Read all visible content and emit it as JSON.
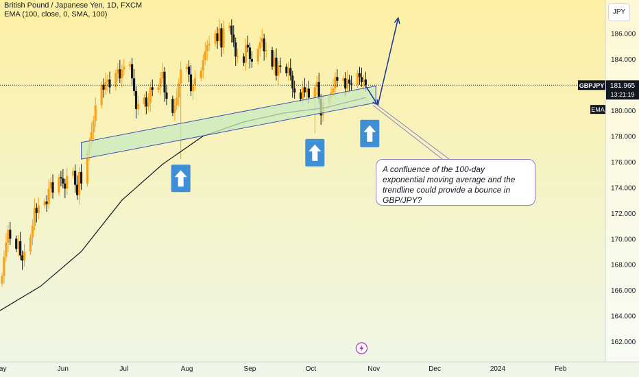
{
  "header": {
    "title": "British Pound / Japanese Yen, 1D, FXCM",
    "indicator": "EMA (100, close, 0, SMA, 100)",
    "currency_button": "JPY"
  },
  "price_tag": {
    "symbol": "GBPJPY",
    "price": "181.965",
    "countdown": "13:21:19",
    "ema_tag": "EMA"
  },
  "annotation": "A confluence of the 100-day exponential moving average and the trendline could provide a bounce in GBP/JPY?",
  "colors": {
    "bg_top": "#fdf0a3",
    "bg_bottom": "#edf5e8",
    "up": "#f7a21b",
    "down": "#131722",
    "ema": "#131722",
    "channel_fill": "#c8ebc0",
    "channel_stroke": "#3f51b5",
    "arrow_box": "#3f8fd6",
    "forecast_arrow": "#1e3a9a",
    "annotation_border": "#8e7cc3"
  },
  "icons": [
    "up-arrow-icon",
    "lightning-icon"
  ],
  "chart_data": {
    "type": "candlestick",
    "symbol": "GBPJPY",
    "timeframe": "1D",
    "y_ticks": [
      162,
      164,
      166,
      168,
      170,
      172,
      174,
      176,
      178,
      180,
      182,
      184,
      186
    ],
    "y_tick_labels": [
      "162.000",
      "164.000",
      "166.000",
      "168.000",
      "170.000",
      "172.000",
      "174.000",
      "176.000",
      "178.000",
      "180.000",
      "182.000",
      "184.000",
      "186.000"
    ],
    "ylim": [
      160.4,
      188.6
    ],
    "x_ticks": [
      "May",
      "Jun",
      "Jul",
      "Aug",
      "Sep",
      "Oct",
      "Nov",
      "Dec",
      "2024",
      "Feb"
    ],
    "x_tick_days": [
      0,
      31,
      61,
      92,
      123,
      153,
      184,
      214,
      245,
      276
    ],
    "xlim": [
      0,
      298
    ],
    "last_price": 181.965,
    "close_approx": [
      [
        1,
        167.1
      ],
      [
        2,
        168.6
      ],
      [
        3,
        169.7
      ],
      [
        4,
        170.7
      ],
      [
        5,
        170.0
      ],
      [
        8,
        169.2
      ],
      [
        9,
        169.8
      ],
      [
        10,
        168.7
      ],
      [
        11,
        168.3
      ],
      [
        12,
        169.0
      ],
      [
        15,
        170.1
      ],
      [
        16,
        171.0
      ],
      [
        17,
        172.4
      ],
      [
        18,
        172.0
      ],
      [
        19,
        172.6
      ],
      [
        22,
        172.9
      ],
      [
        23,
        172.7
      ],
      [
        24,
        173.9
      ],
      [
        25,
        174.4
      ],
      [
        26,
        173.6
      ],
      [
        29,
        174.8
      ],
      [
        30,
        174.7
      ],
      [
        31,
        174.3
      ],
      [
        32,
        173.9
      ],
      [
        33,
        174.9
      ],
      [
        36,
        175.3
      ],
      [
        37,
        174.2
      ],
      [
        38,
        173.4
      ],
      [
        39,
        175.2
      ],
      [
        40,
        174.3
      ],
      [
        43,
        176.7
      ],
      [
        44,
        177.4
      ],
      [
        45,
        178.3
      ],
      [
        46,
        179.2
      ],
      [
        47,
        180.4
      ],
      [
        50,
        182.0
      ],
      [
        51,
        181.6
      ],
      [
        52,
        182.2
      ],
      [
        53,
        182.4
      ],
      [
        54,
        181.8
      ],
      [
        57,
        182.9
      ],
      [
        58,
        183.2
      ],
      [
        59,
        182.5
      ],
      [
        60,
        183.2
      ],
      [
        61,
        183.4
      ],
      [
        64,
        183.6
      ],
      [
        65,
        182.5
      ],
      [
        66,
        181.5
      ],
      [
        67,
        180.1
      ],
      [
        68,
        180.5
      ],
      [
        71,
        181.0
      ],
      [
        72,
        180.3
      ],
      [
        73,
        180.6
      ],
      [
        74,
        181.8
      ],
      [
        75,
        181.6
      ],
      [
        78,
        181.8
      ],
      [
        79,
        182.5
      ],
      [
        80,
        183.0
      ],
      [
        81,
        181.4
      ],
      [
        82,
        180.9
      ],
      [
        85,
        179.8
      ],
      [
        86,
        180.4
      ],
      [
        87,
        181.0
      ],
      [
        88,
        182.1
      ],
      [
        89,
        183.2
      ],
      [
        92,
        183.4
      ],
      [
        93,
        182.8
      ],
      [
        94,
        181.5
      ],
      [
        95,
        182.0
      ],
      [
        96,
        182.5
      ],
      [
        99,
        183.1
      ],
      [
        100,
        183.9
      ],
      [
        101,
        184.6
      ],
      [
        102,
        185.1
      ],
      [
        103,
        185.2
      ],
      [
        106,
        186.0
      ],
      [
        107,
        185.4
      ],
      [
        108,
        186.4
      ],
      [
        109,
        184.9
      ],
      [
        110,
        186.4
      ],
      [
        113,
        186.6
      ],
      [
        114,
        185.9
      ],
      [
        115,
        185.3
      ],
      [
        116,
        184.2
      ],
      [
        117,
        184.2
      ],
      [
        120,
        183.7
      ],
      [
        121,
        185.1
      ],
      [
        122,
        184.9
      ],
      [
        123,
        184.0
      ],
      [
        124,
        183.8
      ],
      [
        127,
        184.8
      ],
      [
        128,
        185.3
      ],
      [
        129,
        185.6
      ],
      [
        130,
        184.6
      ],
      [
        131,
        184.7
      ],
      [
        134,
        183.4
      ],
      [
        135,
        184.1
      ],
      [
        136,
        182.7
      ],
      [
        137,
        183.5
      ],
      [
        138,
        183.4
      ],
      [
        141,
        182.9
      ],
      [
        142,
        183.3
      ],
      [
        143,
        182.7
      ],
      [
        144,
        181.7
      ],
      [
        145,
        181.4
      ],
      [
        148,
        180.9
      ],
      [
        149,
        181.8
      ],
      [
        150,
        181.4
      ],
      [
        151,
        181.7
      ],
      [
        152,
        181.0
      ],
      [
        155,
        181.8
      ],
      [
        156,
        182.2
      ],
      [
        157,
        180.9
      ],
      [
        158,
        179.6
      ],
      [
        159,
        180.6
      ],
      [
        162,
        181.0
      ],
      [
        163,
        181.4
      ],
      [
        164,
        181.7
      ],
      [
        165,
        182.6
      ],
      [
        166,
        182.3
      ],
      [
        169,
        182.5
      ],
      [
        170,
        181.7
      ],
      [
        171,
        182.4
      ],
      [
        172,
        182.1
      ],
      [
        173,
        182.0
      ],
      [
        176,
        182.9
      ],
      [
        177,
        182.6
      ],
      [
        178,
        182.2
      ],
      [
        179,
        182.4
      ],
      [
        180,
        181.965
      ]
    ],
    "ema_100_approx": [
      [
        0,
        164.4
      ],
      [
        20,
        166.3
      ],
      [
        40,
        169.0
      ],
      [
        60,
        173.0
      ],
      [
        80,
        175.8
      ],
      [
        100,
        178.0
      ],
      [
        120,
        179.1
      ],
      [
        140,
        179.8
      ],
      [
        150,
        180.0
      ],
      [
        160,
        180.2
      ],
      [
        170,
        180.6
      ],
      [
        180,
        181.0
      ]
    ],
    "trend_channel": {
      "lower": [
        [
          40,
          176.2
        ],
        [
          185,
          180.6
        ]
      ],
      "upper": [
        [
          40,
          177.5
        ],
        [
          185,
          181.9
        ]
      ]
    },
    "forecast_arrows": [
      {
        "from": [
          180,
          181.9
        ],
        "to": [
          186,
          180.4
        ]
      },
      {
        "from": [
          186,
          180.4
        ],
        "to": [
          196,
          187.2
        ]
      }
    ],
    "bounce_markers": [
      {
        "label": "up-arrow-icon",
        "day": 89,
        "price": 174.7
      },
      {
        "label": "up-arrow-icon",
        "day": 155,
        "price": 176.7
      },
      {
        "label": "up-arrow-icon",
        "day": 182,
        "price": 178.2
      }
    ]
  }
}
